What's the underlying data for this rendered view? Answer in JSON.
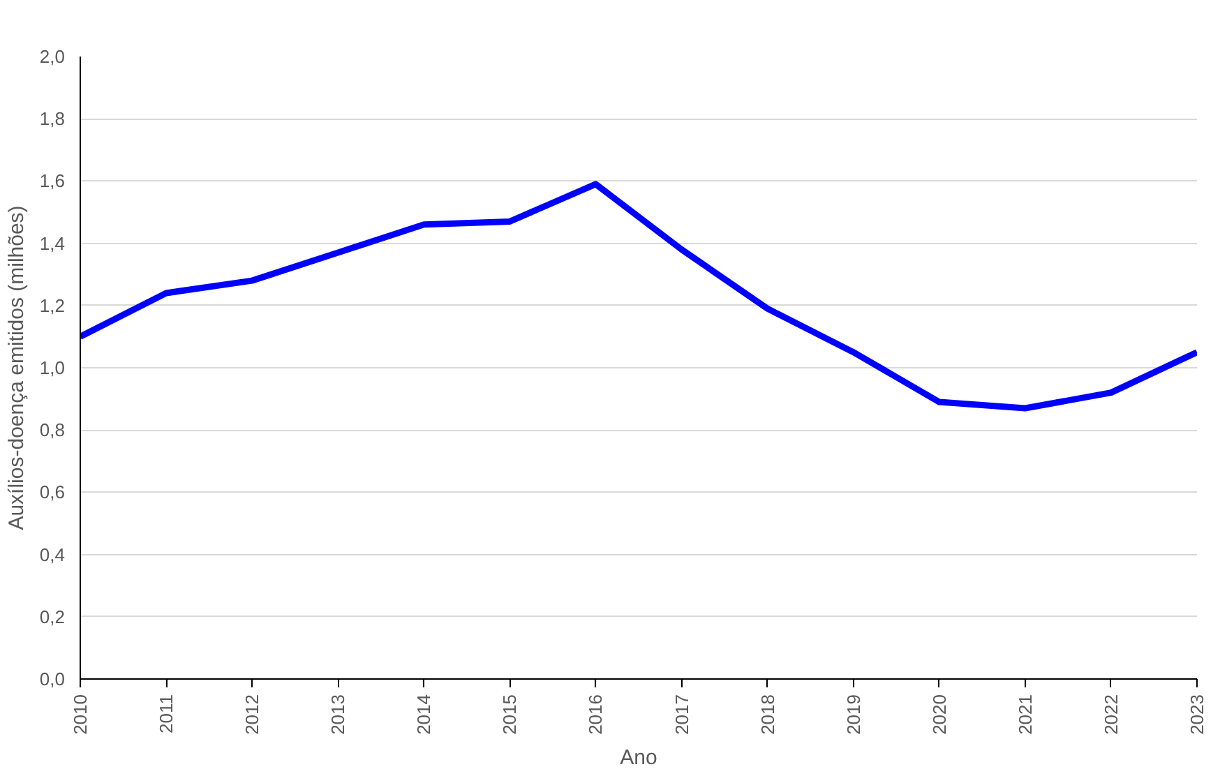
{
  "chart_data": {
    "type": "line",
    "xlabel": "Ano",
    "ylabel": "Auxílios-doença emitidos (milhões)",
    "x": [
      2010,
      2011,
      2012,
      2013,
      2014,
      2015,
      2016,
      2017,
      2018,
      2019,
      2020,
      2021,
      2022,
      2023
    ],
    "series": [
      {
        "color": "#0000ff",
        "values": [
          1.1,
          1.24,
          1.28,
          1.37,
          1.46,
          1.47,
          1.59,
          1.38,
          1.19,
          1.05,
          0.89,
          0.87,
          0.92,
          1.05
        ]
      }
    ],
    "xlim": [
      2010,
      2023
    ],
    "xticks": [
      2010,
      2011,
      2012,
      2013,
      2014,
      2015,
      2016,
      2017,
      2018,
      2019,
      2020,
      2021,
      2022,
      2023
    ],
    "ylim": [
      0,
      2.0
    ],
    "yticks": [
      {
        "value": 0,
        "label": "0,0"
      },
      {
        "value": 0.2,
        "label": "0,2"
      },
      {
        "value": 0.4,
        "label": "0,4"
      },
      {
        "value": 0.6,
        "label": "0,6"
      },
      {
        "value": 0.8,
        "label": "0,8"
      },
      {
        "value": 1.0,
        "label": "1,0"
      },
      {
        "value": 1.2,
        "label": "1,2"
      },
      {
        "value": 1.4,
        "label": "1,4"
      },
      {
        "value": 1.6,
        "label": "1,6"
      },
      {
        "value": 1.8,
        "label": "1,8"
      },
      {
        "value": 2.0,
        "label": "2,0"
      }
    ],
    "grid": "y",
    "marker": "none",
    "line_style": "solid"
  }
}
